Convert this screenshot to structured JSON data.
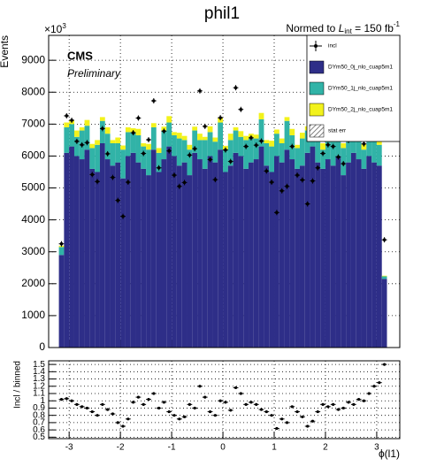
{
  "chart_data": [
    {
      "type": "histogram",
      "title": "phil1",
      "lumi": {
        "prefix": "Normed to ",
        "symbol": "L",
        "sub": "int",
        "mid": " = 150 fb",
        "sup": "-1"
      },
      "cms_label": "CMS",
      "prelim_label": "Preliminary",
      "y_label": "Events",
      "y_exponent": {
        "base": "×10",
        "power": "3"
      },
      "legend": "top-right",
      "stat_err_label": "stat err",
      "grid": true,
      "bins": [
        -3.2,
        -3.1,
        -3.0,
        -2.9,
        -2.8,
        -2.7,
        -2.6,
        -2.5,
        -2.4,
        -2.3,
        -2.2,
        -2.1,
        -2.0,
        -1.9,
        -1.8,
        -1.7,
        -1.6,
        -1.5,
        -1.4,
        -1.3,
        -1.2,
        -1.1,
        -1.0,
        -0.9,
        -0.8,
        -0.7,
        -0.6,
        -0.5,
        -0.4,
        -0.3,
        -0.2,
        -0.1,
        0.0,
        0.1,
        0.2,
        0.3,
        0.4,
        0.5,
        0.6,
        0.7,
        0.8,
        0.9,
        1.0,
        1.1,
        1.2,
        1.3,
        1.4,
        1.5,
        1.6,
        1.7,
        1.8,
        1.9,
        2.0,
        2.1,
        2.2,
        2.3,
        2.4,
        2.5,
        2.6,
        2.7,
        2.8,
        2.9,
        3.0,
        3.1,
        3.2
      ],
      "series": [
        {
          "name": "DYm50_0j_nlo_cuap5m1",
          "color": "#2e2e88",
          "values": [
            2900,
            6100,
            6300,
            6000,
            5900,
            6200,
            5600,
            5500,
            6400,
            5900,
            5700,
            5800,
            5300,
            6000,
            6100,
            5800,
            5600,
            5400,
            6200,
            5500,
            5900,
            6300,
            6000,
            5700,
            5800,
            5400,
            6100,
            5900,
            5600,
            6000,
            5800,
            6200,
            5500,
            5700,
            6100,
            6000,
            5600,
            5800,
            5900,
            6300,
            5700,
            5500,
            6000,
            5800,
            6200,
            5900,
            5600,
            5700,
            6100,
            6300,
            5800,
            5600,
            5900,
            5700,
            6000,
            5400,
            5800,
            6100,
            5900,
            5600,
            6000,
            5800,
            5700,
            2150
          ]
        },
        {
          "name": "DYm50_1j_nlo_cuap5m1",
          "color": "#31b3a7",
          "values": [
            250,
            800,
            700,
            600,
            900,
            750,
            650,
            850,
            700,
            800,
            700,
            600,
            900,
            750,
            650,
            850,
            700,
            800,
            700,
            600,
            900,
            750,
            650,
            850,
            700,
            800,
            700,
            600,
            900,
            750,
            650,
            850,
            700,
            800,
            700,
            600,
            900,
            750,
            650,
            850,
            700,
            800,
            700,
            600,
            900,
            750,
            650,
            850,
            700,
            800,
            700,
            600,
            900,
            750,
            650,
            850,
            700,
            800,
            700,
            600,
            900,
            750,
            650,
            80
          ]
        },
        {
          "name": "DYm50_2j_nlo_cuap5m1",
          "color": "#f2f21c",
          "values": [
            40,
            150,
            120,
            200,
            100,
            180,
            130,
            150,
            120,
            200,
            100,
            180,
            130,
            150,
            120,
            200,
            100,
            180,
            130,
            150,
            120,
            200,
            100,
            180,
            130,
            150,
            120,
            200,
            100,
            180,
            130,
            150,
            120,
            200,
            100,
            180,
            130,
            150,
            120,
            200,
            100,
            180,
            130,
            150,
            120,
            200,
            100,
            180,
            130,
            150,
            120,
            200,
            100,
            180,
            130,
            150,
            120,
            200,
            100,
            180,
            130,
            150,
            120,
            20
          ]
        },
        {
          "name": "incl",
          "color": "#000000",
          "style": "markers",
          "values": [
            3250,
            7260,
            7120,
            6460,
            6350,
            6420,
            5420,
            5200,
            6860,
            6070,
            5330,
            4610,
            4110,
            5180,
            6730,
            7190,
            6080,
            6510,
            7730,
            5630,
            6780,
            6160,
            5400,
            5050,
            5170,
            6030,
            6230,
            8040,
            6930,
            5890,
            5260,
            7200,
            6190,
            5830,
            8140,
            7460,
            6300,
            6570,
            6340,
            6470,
            5530,
            5180,
            4230,
            4910,
            5050,
            6300,
            5400,
            5250,
            4500,
            5220,
            5630,
            6080,
            6350,
            6300,
            5970,
            5760,
            6490,
            6750,
            6830,
            6380,
            7730,
            8040,
            8090,
            3375
          ]
        }
      ],
      "xlim": [
        -3.4,
        3.45
      ],
      "xticks": [
        -3,
        -2,
        -1,
        0,
        1,
        2,
        3
      ],
      "ylim": [
        0,
        9780
      ],
      "yticks": [
        0,
        1000,
        2000,
        3000,
        4000,
        5000,
        6000,
        7000,
        8000,
        9000
      ]
    },
    {
      "type": "scatter",
      "y_label": "Incl / binned",
      "x_label": "ϕ(l1)",
      "grid": true,
      "color": "#000000",
      "bins": [
        -3.2,
        -3.1,
        -3.0,
        -2.9,
        -2.8,
        -2.7,
        -2.6,
        -2.5,
        -2.4,
        -2.3,
        -2.2,
        -2.1,
        -2.0,
        -1.9,
        -1.8,
        -1.7,
        -1.6,
        -1.5,
        -1.4,
        -1.3,
        -1.2,
        -1.1,
        -1.0,
        -0.9,
        -0.8,
        -0.7,
        -0.6,
        -0.5,
        -0.4,
        -0.3,
        -0.2,
        -0.1,
        0.0,
        0.1,
        0.2,
        0.3,
        0.4,
        0.5,
        0.6,
        0.7,
        0.8,
        0.9,
        1.0,
        1.1,
        1.2,
        1.3,
        1.4,
        1.5,
        1.6,
        1.7,
        1.8,
        1.9,
        2.0,
        2.1,
        2.2,
        2.3,
        2.4,
        2.5,
        2.6,
        2.7,
        2.8,
        2.9,
        3.0,
        3.1,
        3.2
      ],
      "values": [
        1.02,
        1.03,
        1.0,
        0.95,
        0.92,
        0.9,
        0.85,
        0.8,
        0.95,
        0.88,
        0.82,
        0.7,
        0.65,
        0.75,
        0.98,
        1.05,
        0.95,
        1.02,
        1.1,
        0.9,
        0.98,
        0.85,
        0.8,
        0.75,
        0.78,
        0.95,
        0.9,
        1.2,
        1.05,
        0.85,
        0.8,
        1.0,
        0.98,
        0.87,
        1.18,
        1.1,
        0.95,
        0.98,
        0.95,
        0.88,
        0.85,
        0.8,
        0.62,
        0.75,
        0.7,
        0.92,
        0.85,
        0.78,
        0.65,
        0.72,
        0.85,
        0.95,
        0.92,
        0.95,
        0.88,
        0.9,
        0.98,
        0.95,
        1.02,
        1.0,
        1.1,
        1.2,
        1.25,
        1.5
      ],
      "xlim": [
        -3.4,
        3.45
      ],
      "xticks": [
        -3,
        -2,
        -1,
        0,
        1,
        2,
        3
      ],
      "ylim": [
        0.48,
        1.55
      ],
      "yticks": [
        0.5,
        0.6,
        0.7,
        0.8,
        0.9,
        1,
        1.1,
        1.2,
        1.3,
        1.4,
        1.5
      ]
    }
  ]
}
